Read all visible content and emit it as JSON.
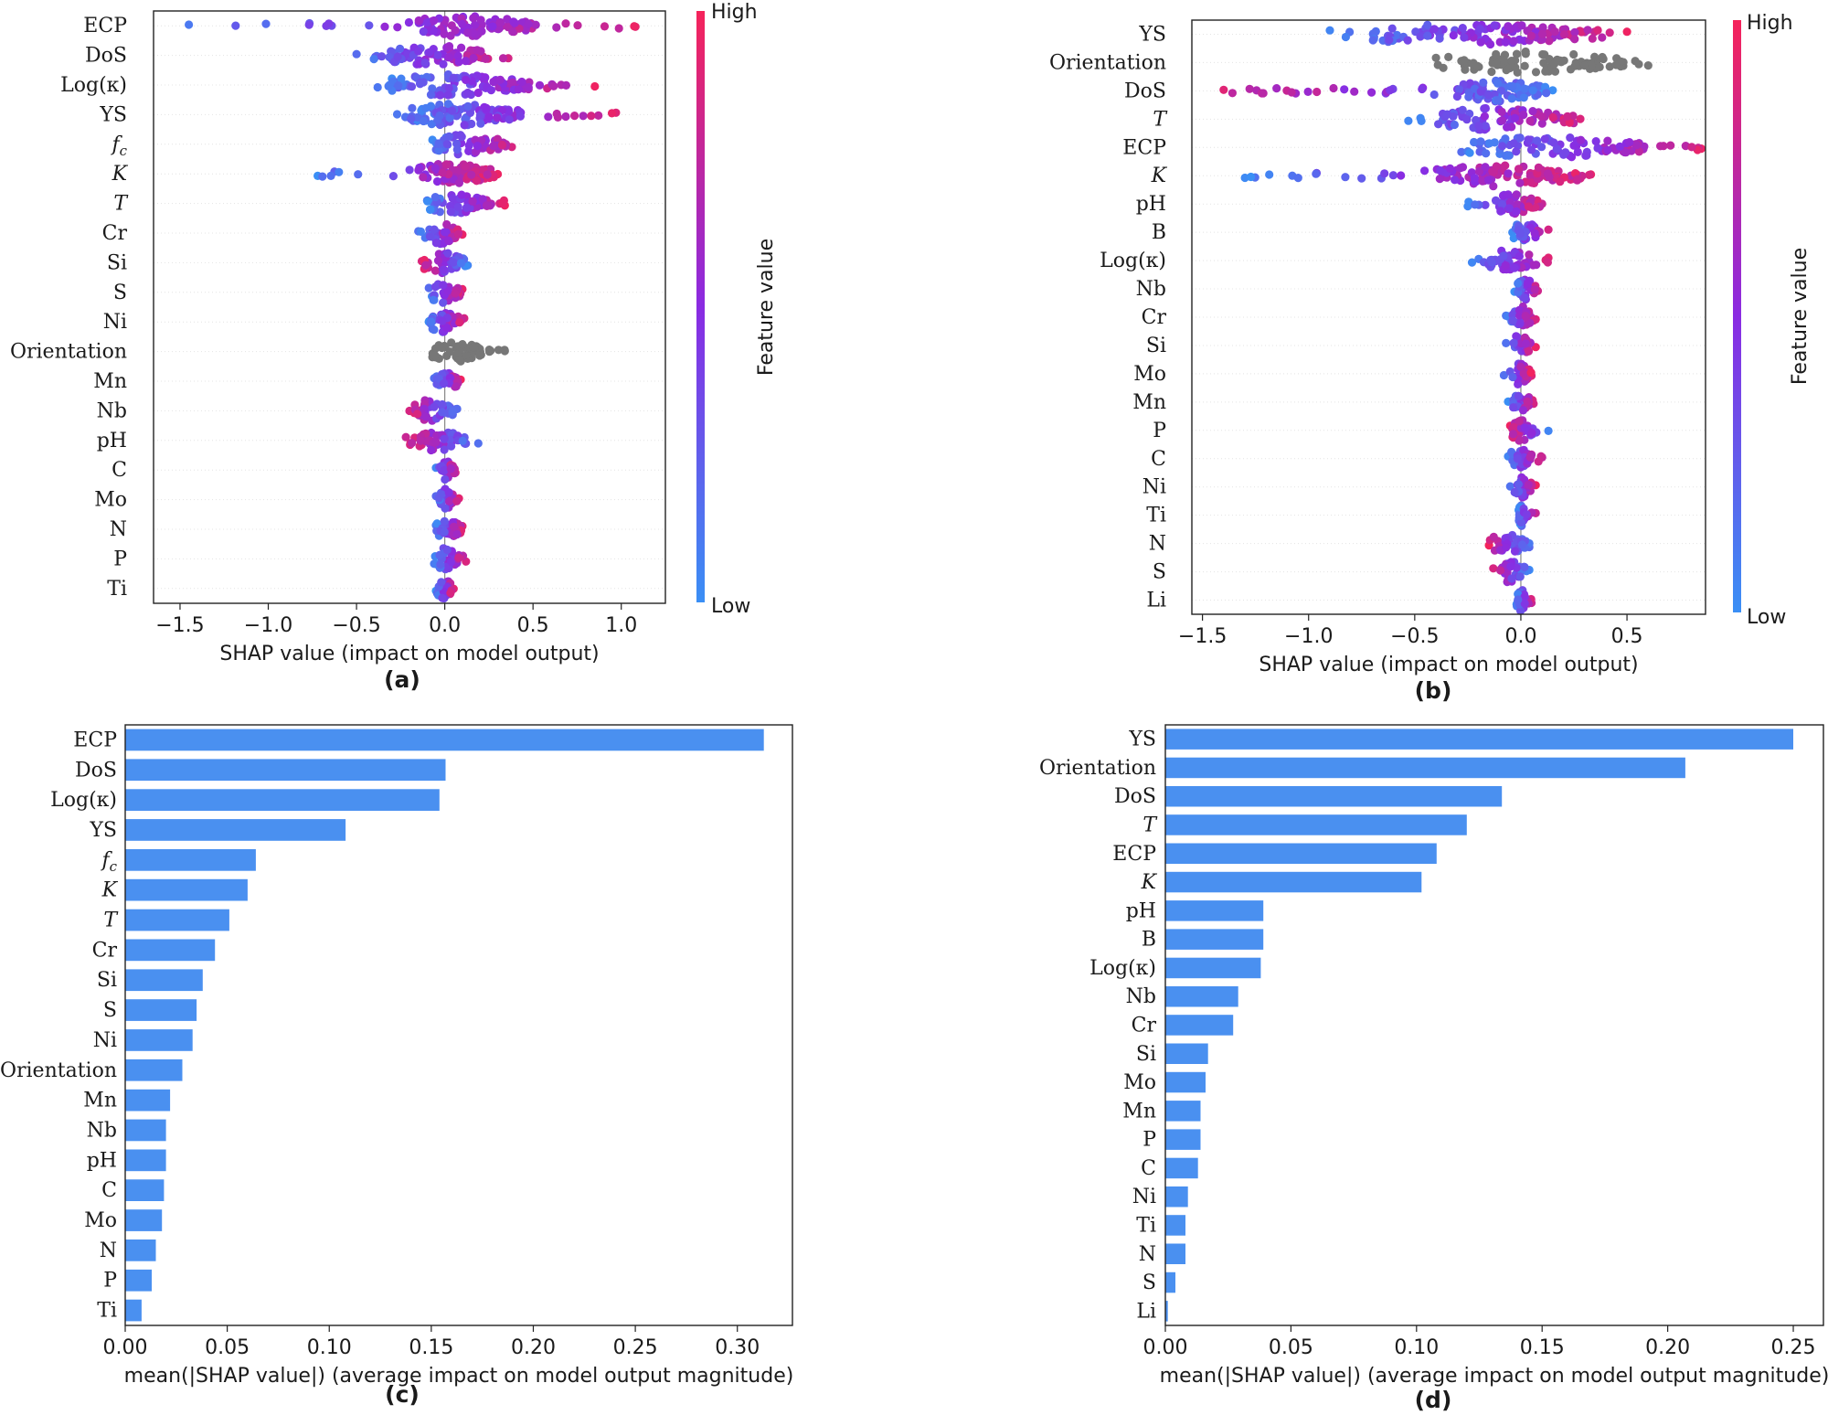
{
  "colors": {
    "bar": "#4a90f0",
    "low": "#3a8ff5",
    "high": "#f5235a",
    "mid": "#8a2be2",
    "gray": "#777777"
  },
  "colorbar": {
    "high_label": "High",
    "low_label": "Low",
    "title": "Feature value"
  },
  "chart_data": [
    {
      "type": "scatter",
      "panel": "(a)",
      "xlabel": "SHAP value (impact on model output)",
      "xlim": [
        -1.65,
        1.25
      ],
      "xticks": [
        -1.5,
        -1.0,
        -0.5,
        0.0,
        0.5,
        1.0
      ],
      "xtick_labels": [
        "−1.5",
        "−1.0",
        "−0.5",
        "0.0",
        "0.5",
        "1.0"
      ],
      "features": [
        {
          "label": "ECP",
          "italic": false,
          "min": -1.45,
          "max": 1.08,
          "core": [
            -0.15,
            0.5
          ],
          "trend": 1,
          "gray": false
        },
        {
          "label": "DoS",
          "italic": false,
          "min": -0.5,
          "max": 0.36,
          "core": [
            -0.3,
            0.25
          ],
          "trend": 1,
          "gray": false
        },
        {
          "label": "Log(κ)",
          "italic": false,
          "min": -0.38,
          "max": 0.85,
          "core": [
            -0.3,
            0.5
          ],
          "trend": 1,
          "gray": false
        },
        {
          "label": "YS",
          "italic": false,
          "min": -0.27,
          "max": 0.97,
          "core": [
            -0.2,
            0.45
          ],
          "trend": 1,
          "gray": false
        },
        {
          "label": "f_c",
          "italic": true,
          "min": -0.07,
          "max": 0.38,
          "core": [
            -0.05,
            0.35
          ],
          "trend": 1,
          "gray": false
        },
        {
          "label": "K",
          "italic": true,
          "min": -0.72,
          "max": 0.3,
          "core": [
            -0.15,
            0.28
          ],
          "trend": 1,
          "gray": false
        },
        {
          "label": "T",
          "italic": true,
          "min": -0.1,
          "max": 0.34,
          "core": [
            -0.08,
            0.25
          ],
          "trend": 1,
          "gray": false
        },
        {
          "label": "Cr",
          "italic": false,
          "min": -0.15,
          "max": 0.1,
          "core": [
            -0.1,
            0.08
          ],
          "trend": 1,
          "gray": false
        },
        {
          "label": "Si",
          "italic": false,
          "min": -0.13,
          "max": 0.13,
          "core": [
            -0.12,
            0.12
          ],
          "trend": -1,
          "gray": false
        },
        {
          "label": "S",
          "italic": false,
          "min": -0.09,
          "max": 0.1,
          "core": [
            -0.08,
            0.08
          ],
          "trend": 1,
          "gray": false
        },
        {
          "label": "Ni",
          "italic": false,
          "min": -0.09,
          "max": 0.11,
          "core": [
            -0.08,
            0.1
          ],
          "trend": 1,
          "gray": false
        },
        {
          "label": "Orientation",
          "italic": false,
          "min": -0.07,
          "max": 0.34,
          "core": [
            -0.06,
            0.22
          ],
          "trend": 0,
          "gray": true
        },
        {
          "label": "Mn",
          "italic": false,
          "min": -0.06,
          "max": 0.09,
          "core": [
            -0.05,
            0.08
          ],
          "trend": 1,
          "gray": false
        },
        {
          "label": "Nb",
          "italic": false,
          "min": -0.2,
          "max": 0.07,
          "core": [
            -0.18,
            0.05
          ],
          "trend": -1,
          "gray": false
        },
        {
          "label": "pH",
          "italic": false,
          "min": -0.22,
          "max": 0.19,
          "core": [
            -0.15,
            0.12
          ],
          "trend": -1,
          "gray": false
        },
        {
          "label": "C",
          "italic": false,
          "min": -0.05,
          "max": 0.06,
          "core": [
            -0.04,
            0.05
          ],
          "trend": 1,
          "gray": false
        },
        {
          "label": "Mo",
          "italic": false,
          "min": -0.05,
          "max": 0.08,
          "core": [
            -0.04,
            0.06
          ],
          "trend": 1,
          "gray": false
        },
        {
          "label": "N",
          "italic": false,
          "min": -0.05,
          "max": 0.1,
          "core": [
            -0.04,
            0.09
          ],
          "trend": 1,
          "gray": false
        },
        {
          "label": "P",
          "italic": false,
          "min": -0.06,
          "max": 0.12,
          "core": [
            -0.05,
            0.08
          ],
          "trend": 1,
          "gray": false
        },
        {
          "label": "Ti",
          "italic": false,
          "min": -0.05,
          "max": 0.05,
          "core": [
            -0.04,
            0.04
          ],
          "trend": 1,
          "gray": false
        }
      ]
    },
    {
      "type": "scatter",
      "panel": "(b)",
      "xlabel": "SHAP value (impact on model output)",
      "xlim": [
        -1.55,
        0.87
      ],
      "xticks": [
        -1.5,
        -1.0,
        -0.5,
        0.0,
        0.5
      ],
      "xtick_labels": [
        "−1.5",
        "−1.0",
        "−0.5",
        "0.0",
        "0.5"
      ],
      "features": [
        {
          "label": "YS",
          "italic": false,
          "min": -0.9,
          "max": 0.5,
          "core": [
            -0.7,
            0.4
          ],
          "trend": 1,
          "gray": false
        },
        {
          "label": "Orientation",
          "italic": false,
          "min": -0.4,
          "max": 0.6,
          "core": [
            -0.3,
            0.5
          ],
          "trend": 0,
          "gray": true
        },
        {
          "label": "DoS",
          "italic": false,
          "min": -1.4,
          "max": 0.15,
          "core": [
            -0.3,
            0.12
          ],
          "trend": -1,
          "gray": false
        },
        {
          "label": "T",
          "italic": true,
          "min": -0.53,
          "max": 0.28,
          "core": [
            -0.4,
            0.25
          ],
          "trend": 1,
          "gray": false
        },
        {
          "label": "ECP",
          "italic": false,
          "min": -0.28,
          "max": 0.85,
          "core": [
            -0.2,
            0.6
          ],
          "trend": 1,
          "gray": false
        },
        {
          "label": "K",
          "italic": true,
          "min": -1.3,
          "max": 0.33,
          "core": [
            -0.4,
            0.3
          ],
          "trend": 1,
          "gray": false
        },
        {
          "label": "pH",
          "italic": false,
          "min": -0.25,
          "max": 0.1,
          "core": [
            -0.12,
            0.08
          ],
          "trend": 1,
          "gray": false
        },
        {
          "label": "B",
          "italic": false,
          "min": -0.04,
          "max": 0.13,
          "core": [
            -0.03,
            0.1
          ],
          "trend": 1,
          "gray": false
        },
        {
          "label": "Log(κ)",
          "italic": false,
          "min": -0.23,
          "max": 0.13,
          "core": [
            -0.15,
            0.08
          ],
          "trend": 1,
          "gray": false
        },
        {
          "label": "Nb",
          "italic": false,
          "min": -0.03,
          "max": 0.08,
          "core": [
            -0.02,
            0.07
          ],
          "trend": 1,
          "gray": false
        },
        {
          "label": "Cr",
          "italic": false,
          "min": -0.07,
          "max": 0.07,
          "core": [
            -0.04,
            0.06
          ],
          "trend": 1,
          "gray": false
        },
        {
          "label": "Si",
          "italic": false,
          "min": -0.07,
          "max": 0.07,
          "core": [
            -0.04,
            0.05
          ],
          "trend": 1,
          "gray": false
        },
        {
          "label": "Mo",
          "italic": false,
          "min": -0.08,
          "max": 0.05,
          "core": [
            -0.04,
            0.04
          ],
          "trend": 1,
          "gray": false
        },
        {
          "label": "Mn",
          "italic": false,
          "min": -0.06,
          "max": 0.06,
          "core": [
            -0.04,
            0.05
          ],
          "trend": 1,
          "gray": false
        },
        {
          "label": "P",
          "italic": false,
          "min": -0.05,
          "max": 0.13,
          "core": [
            -0.04,
            0.06
          ],
          "trend": -1,
          "gray": false
        },
        {
          "label": "C",
          "italic": false,
          "min": -0.06,
          "max": 0.1,
          "core": [
            -0.05,
            0.05
          ],
          "trend": 1,
          "gray": false
        },
        {
          "label": "Ni",
          "italic": false,
          "min": -0.05,
          "max": 0.07,
          "core": [
            -0.03,
            0.05
          ],
          "trend": 1,
          "gray": false
        },
        {
          "label": "Ti",
          "italic": false,
          "min": -0.01,
          "max": 0.07,
          "core": [
            -0.01,
            0.02
          ],
          "trend": 1,
          "gray": false
        },
        {
          "label": "N",
          "italic": false,
          "min": -0.15,
          "max": 0.04,
          "core": [
            -0.13,
            0.03
          ],
          "trend": -1,
          "gray": false
        },
        {
          "label": "S",
          "italic": false,
          "min": -0.13,
          "max": 0.04,
          "core": [
            -0.1,
            0.03
          ],
          "trend": -1,
          "gray": false
        },
        {
          "label": "Li",
          "italic": false,
          "min": -0.02,
          "max": 0.05,
          "core": [
            -0.02,
            0.03
          ],
          "trend": 1,
          "gray": false
        }
      ]
    },
    {
      "type": "bar",
      "orientation": "horizontal",
      "panel": "(c)",
      "xlabel": "mean(|SHAP value|) (average impact on model output magnitude)",
      "xlim": [
        0,
        0.327
      ],
      "xticks": [
        0.0,
        0.05,
        0.1,
        0.15,
        0.2,
        0.25,
        0.3
      ],
      "xtick_labels": [
        "0.00",
        "0.05",
        "0.10",
        "0.15",
        "0.20",
        "0.25",
        "0.30"
      ],
      "categories": [
        "ECP",
        "DoS",
        "Log(κ)",
        "YS",
        "f_c",
        "K",
        "T",
        "Cr",
        "Si",
        "S",
        "Ni",
        "Orientation",
        "Mn",
        "Nb",
        "pH",
        "C",
        "Mo",
        "N",
        "P",
        "Ti"
      ],
      "italic": [
        false,
        false,
        false,
        false,
        true,
        true,
        true,
        false,
        false,
        false,
        false,
        false,
        false,
        false,
        false,
        false,
        false,
        false,
        false,
        false
      ],
      "values": [
        0.313,
        0.157,
        0.154,
        0.108,
        0.064,
        0.06,
        0.051,
        0.044,
        0.038,
        0.035,
        0.033,
        0.028,
        0.022,
        0.02,
        0.02,
        0.019,
        0.018,
        0.015,
        0.013,
        0.008
      ]
    },
    {
      "type": "bar",
      "orientation": "horizontal",
      "panel": "(d)",
      "xlabel": "mean(|SHAP value|) (average impact on model output magnitude)",
      "xlim": [
        0,
        0.262
      ],
      "xticks": [
        0.0,
        0.05,
        0.1,
        0.15,
        0.2,
        0.25
      ],
      "xtick_labels": [
        "0.00",
        "0.05",
        "0.10",
        "0.15",
        "0.20",
        "0.25"
      ],
      "categories": [
        "YS",
        "Orientation",
        "DoS",
        "T",
        "ECP",
        "K",
        "pH",
        "B",
        "Log(κ)",
        "Nb",
        "Cr",
        "Si",
        "Mo",
        "Mn",
        "P",
        "C",
        "Ni",
        "Ti",
        "N",
        "S",
        "Li"
      ],
      "italic": [
        false,
        false,
        false,
        true,
        false,
        true,
        false,
        false,
        false,
        false,
        false,
        false,
        false,
        false,
        false,
        false,
        false,
        false,
        false,
        false,
        false
      ],
      "values": [
        0.25,
        0.207,
        0.134,
        0.12,
        0.108,
        0.102,
        0.039,
        0.039,
        0.038,
        0.029,
        0.027,
        0.017,
        0.016,
        0.014,
        0.014,
        0.013,
        0.009,
        0.008,
        0.008,
        0.004,
        0.001
      ]
    }
  ]
}
